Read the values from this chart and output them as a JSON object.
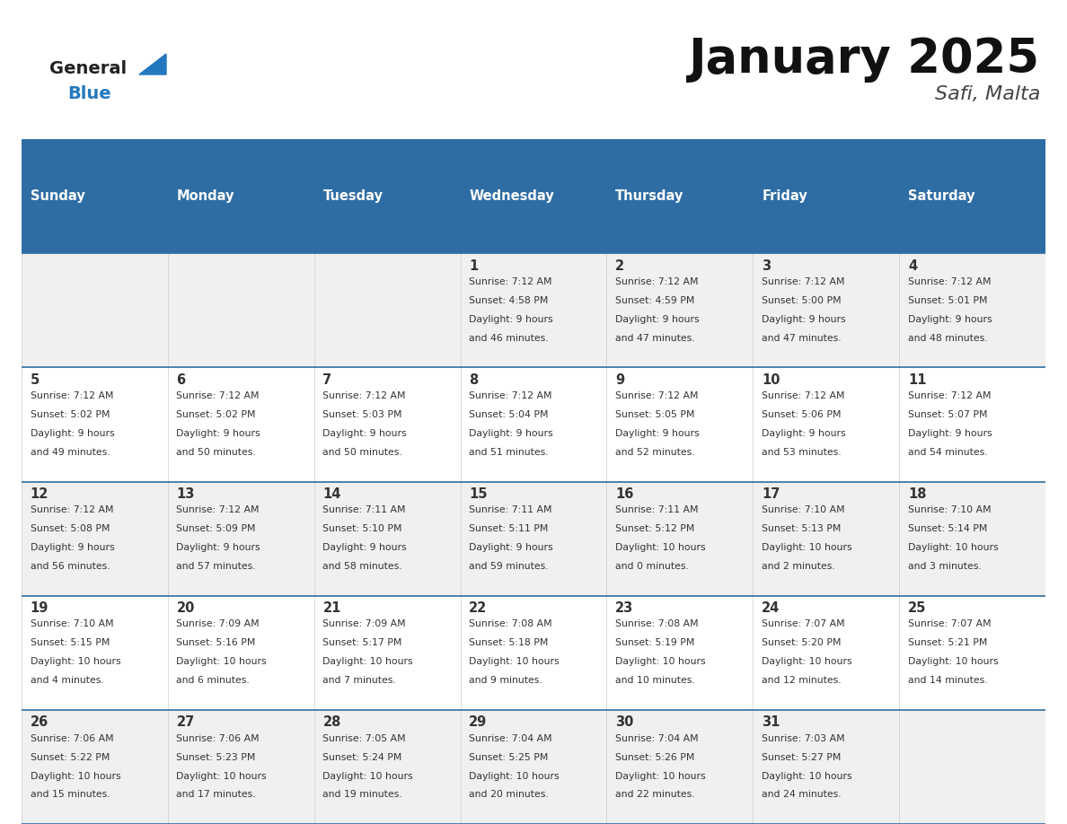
{
  "title": "January 2025",
  "subtitle": "Safi, Malta",
  "days_of_week": [
    "Sunday",
    "Monday",
    "Tuesday",
    "Wednesday",
    "Thursday",
    "Friday",
    "Saturday"
  ],
  "header_bg": "#2E6DA4",
  "header_text": "#FFFFFF",
  "row_bg_odd": "#F0F0F0",
  "row_bg_even": "#FFFFFF",
  "cell_border_color": "#2E6DA4",
  "row_divider_color": "#2E6DA4",
  "day_number_color": "#333333",
  "info_text_color": "#333333",
  "title_color": "#111111",
  "subtitle_color": "#444444",
  "logo_general_color": "#222222",
  "logo_blue_color": "#2478BE",
  "calendar_data": [
    [
      null,
      null,
      null,
      {
        "day": 1,
        "sunrise": "7:12 AM",
        "sunset": "4:58 PM",
        "daylight": "9 hours and 46 minutes."
      },
      {
        "day": 2,
        "sunrise": "7:12 AM",
        "sunset": "4:59 PM",
        "daylight": "9 hours and 47 minutes."
      },
      {
        "day": 3,
        "sunrise": "7:12 AM",
        "sunset": "5:00 PM",
        "daylight": "9 hours and 47 minutes."
      },
      {
        "day": 4,
        "sunrise": "7:12 AM",
        "sunset": "5:01 PM",
        "daylight": "9 hours and 48 minutes."
      }
    ],
    [
      {
        "day": 5,
        "sunrise": "7:12 AM",
        "sunset": "5:02 PM",
        "daylight": "9 hours and 49 minutes."
      },
      {
        "day": 6,
        "sunrise": "7:12 AM",
        "sunset": "5:02 PM",
        "daylight": "9 hours and 50 minutes."
      },
      {
        "day": 7,
        "sunrise": "7:12 AM",
        "sunset": "5:03 PM",
        "daylight": "9 hours and 50 minutes."
      },
      {
        "day": 8,
        "sunrise": "7:12 AM",
        "sunset": "5:04 PM",
        "daylight": "9 hours and 51 minutes."
      },
      {
        "day": 9,
        "sunrise": "7:12 AM",
        "sunset": "5:05 PM",
        "daylight": "9 hours and 52 minutes."
      },
      {
        "day": 10,
        "sunrise": "7:12 AM",
        "sunset": "5:06 PM",
        "daylight": "9 hours and 53 minutes."
      },
      {
        "day": 11,
        "sunrise": "7:12 AM",
        "sunset": "5:07 PM",
        "daylight": "9 hours and 54 minutes."
      }
    ],
    [
      {
        "day": 12,
        "sunrise": "7:12 AM",
        "sunset": "5:08 PM",
        "daylight": "9 hours and 56 minutes."
      },
      {
        "day": 13,
        "sunrise": "7:12 AM",
        "sunset": "5:09 PM",
        "daylight": "9 hours and 57 minutes."
      },
      {
        "day": 14,
        "sunrise": "7:11 AM",
        "sunset": "5:10 PM",
        "daylight": "9 hours and 58 minutes."
      },
      {
        "day": 15,
        "sunrise": "7:11 AM",
        "sunset": "5:11 PM",
        "daylight": "9 hours and 59 minutes."
      },
      {
        "day": 16,
        "sunrise": "7:11 AM",
        "sunset": "5:12 PM",
        "daylight": "10 hours and 0 minutes."
      },
      {
        "day": 17,
        "sunrise": "7:10 AM",
        "sunset": "5:13 PM",
        "daylight": "10 hours and 2 minutes."
      },
      {
        "day": 18,
        "sunrise": "7:10 AM",
        "sunset": "5:14 PM",
        "daylight": "10 hours and 3 minutes."
      }
    ],
    [
      {
        "day": 19,
        "sunrise": "7:10 AM",
        "sunset": "5:15 PM",
        "daylight": "10 hours and 4 minutes."
      },
      {
        "day": 20,
        "sunrise": "7:09 AM",
        "sunset": "5:16 PM",
        "daylight": "10 hours and 6 minutes."
      },
      {
        "day": 21,
        "sunrise": "7:09 AM",
        "sunset": "5:17 PM",
        "daylight": "10 hours and 7 minutes."
      },
      {
        "day": 22,
        "sunrise": "7:08 AM",
        "sunset": "5:18 PM",
        "daylight": "10 hours and 9 minutes."
      },
      {
        "day": 23,
        "sunrise": "7:08 AM",
        "sunset": "5:19 PM",
        "daylight": "10 hours and 10 minutes."
      },
      {
        "day": 24,
        "sunrise": "7:07 AM",
        "sunset": "5:20 PM",
        "daylight": "10 hours and 12 minutes."
      },
      {
        "day": 25,
        "sunrise": "7:07 AM",
        "sunset": "5:21 PM",
        "daylight": "10 hours and 14 minutes."
      }
    ],
    [
      {
        "day": 26,
        "sunrise": "7:06 AM",
        "sunset": "5:22 PM",
        "daylight": "10 hours and 15 minutes."
      },
      {
        "day": 27,
        "sunrise": "7:06 AM",
        "sunset": "5:23 PM",
        "daylight": "10 hours and 17 minutes."
      },
      {
        "day": 28,
        "sunrise": "7:05 AM",
        "sunset": "5:24 PM",
        "daylight": "10 hours and 19 minutes."
      },
      {
        "day": 29,
        "sunrise": "7:04 AM",
        "sunset": "5:25 PM",
        "daylight": "10 hours and 20 minutes."
      },
      {
        "day": 30,
        "sunrise": "7:04 AM",
        "sunset": "5:26 PM",
        "daylight": "10 hours and 22 minutes."
      },
      {
        "day": 31,
        "sunrise": "7:03 AM",
        "sunset": "5:27 PM",
        "daylight": "10 hours and 24 minutes."
      },
      null
    ]
  ],
  "fig_width": 11.88,
  "fig_height": 9.18,
  "dpi": 100
}
